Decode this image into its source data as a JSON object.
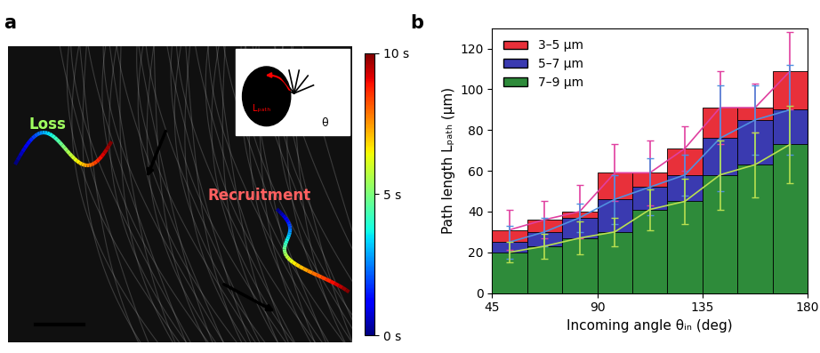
{
  "chart_data": [
    {
      "type": "image",
      "panel_label": "a",
      "annotations": [
        "Loss",
        "Recruitment",
        "Lₚₐₜₕ",
        "θ"
      ],
      "colorbar": {
        "range": [
          0,
          10
        ],
        "ticks": [
          {
            "value": 0,
            "label": "0 s"
          },
          {
            "value": 5,
            "label": "5 s"
          },
          {
            "value": 10,
            "label": "10 s"
          }
        ]
      }
    },
    {
      "type": "bar",
      "panel_label": "b",
      "xlabel": "Incoming angle θᵢₙ (deg)",
      "ylabel": "Path length Lₚₐₜₕ (μm)",
      "x": [
        52.5,
        67.5,
        82.5,
        97.5,
        112.5,
        127.5,
        142.5,
        157.5,
        172.5
      ],
      "xlim": [
        45,
        180
      ],
      "xticks": [
        45,
        90,
        135,
        180
      ],
      "ylim": [
        0,
        130
      ],
      "yticks": [
        0,
        20,
        40,
        60,
        80,
        100,
        120
      ],
      "legend": "upper left",
      "series": [
        {
          "name": "3–5 μm",
          "color": "#e8303a",
          "values": [
            31,
            36,
            40,
            59,
            59,
            71,
            91,
            91,
            109
          ],
          "errors": [
            10,
            9,
            13,
            14,
            16,
            11,
            18,
            12,
            19
          ]
        },
        {
          "name": "5–7 μm",
          "color": "#3a3ab0",
          "values": [
            25,
            30,
            37,
            46,
            52,
            58,
            76,
            85,
            90
          ],
          "errors": [
            8,
            7,
            7,
            12,
            14,
            10,
            26,
            17,
            22
          ]
        },
        {
          "name": "7–9 μm",
          "color": "#2e8b3a",
          "values": [
            20,
            23,
            27,
            30,
            41,
            45,
            58,
            63,
            73
          ],
          "errors": [
            5,
            6,
            8,
            7,
            10,
            11,
            17,
            16,
            19
          ]
        }
      ]
    }
  ]
}
